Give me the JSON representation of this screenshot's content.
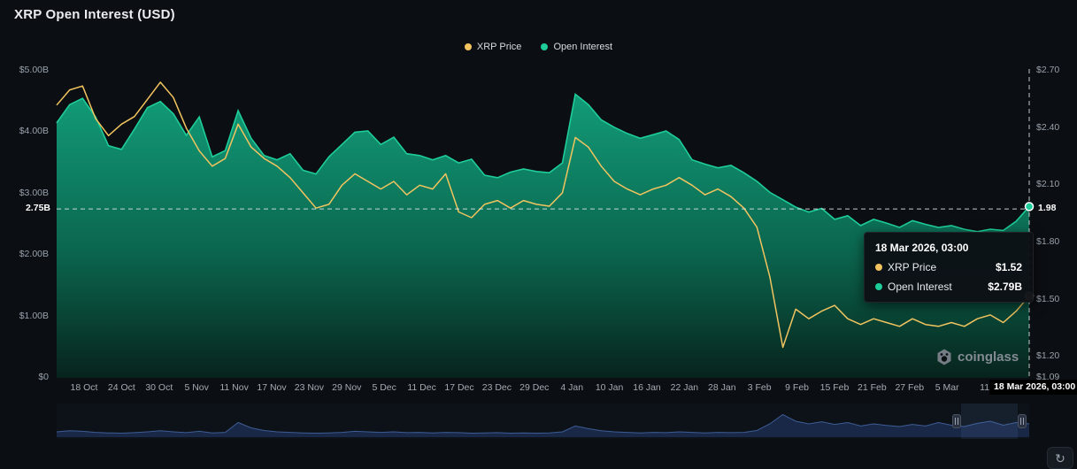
{
  "title": "XRP Open Interest (USD)",
  "legend": [
    {
      "label": "XRP Price",
      "color": "#F2C45F"
    },
    {
      "label": "Open Interest",
      "color": "#1ECD9A"
    }
  ],
  "colors": {
    "background": "#0B0E12",
    "price": "#F2C45F",
    "oi": "#1ECD9A",
    "oi_gradient_top": "#12A37D",
    "oi_gradient_bottom": "#07231C",
    "navigator_fill": "#1B2B4C",
    "navigator_line": "#3D5C94",
    "crosshair": "#E7EAEE"
  },
  "chart_data": {
    "type": "area",
    "title": "XRP Open Interest (USD)",
    "x_start": "18 Oct",
    "x_end": "18 Mar 2026",
    "x_ticks": [
      "18 Oct",
      "24 Oct",
      "30 Oct",
      "5 Nov",
      "11 Nov",
      "17 Nov",
      "23 Nov",
      "29 Nov",
      "5 Dec",
      "11 Dec",
      "17 Dec",
      "23 Dec",
      "29 Dec",
      "4 Jan",
      "10 Jan",
      "16 Jan",
      "22 Jan",
      "28 Jan",
      "3 Feb",
      "9 Feb",
      "15 Feb",
      "21 Feb",
      "27 Feb",
      "5 Mar",
      "11"
    ],
    "left_axis": {
      "title": "Open Interest (USD)",
      "min": 0,
      "max": 5,
      "ticks": [
        {
          "label": "$0",
          "value": 0
        },
        {
          "label": "$1.00B",
          "value": 1
        },
        {
          "label": "$2.00B",
          "value": 2
        },
        {
          "label": "$3.00B",
          "value": 3
        },
        {
          "label": "$4.00B",
          "value": 4
        },
        {
          "label": "$5.00B",
          "value": 5
        }
      ]
    },
    "right_axis": {
      "title": "XRP Price (USD)",
      "min": 1.09,
      "max": 2.7,
      "ticks": [
        {
          "label": "$1.09",
          "value": 1.09
        },
        {
          "label": "$1.20",
          "value": 1.2
        },
        {
          "label": "$1.50",
          "value": 1.5
        },
        {
          "label": "$1.80",
          "value": 1.8
        },
        {
          "label": "$2.10",
          "value": 2.1
        },
        {
          "label": "$2.40",
          "value": 2.4
        },
        {
          "label": "$2.70",
          "value": 2.7
        }
      ]
    },
    "series": [
      {
        "name": "XRP Price",
        "type": "line",
        "axis": "right",
        "color": "#F2C45F",
        "values": [
          2.52,
          2.6,
          2.62,
          2.45,
          2.36,
          2.42,
          2.46,
          2.55,
          2.64,
          2.56,
          2.4,
          2.28,
          2.2,
          2.24,
          2.42,
          2.3,
          2.24,
          2.2,
          2.14,
          2.06,
          1.98,
          2.0,
          2.1,
          2.16,
          2.12,
          2.08,
          2.12,
          2.05,
          2.1,
          2.08,
          2.16,
          1.96,
          1.93,
          2.0,
          2.02,
          1.98,
          2.02,
          2.0,
          1.99,
          2.06,
          2.35,
          2.3,
          2.2,
          2.12,
          2.08,
          2.05,
          2.08,
          2.1,
          2.14,
          2.1,
          2.05,
          2.08,
          2.04,
          1.98,
          1.88,
          1.62,
          1.25,
          1.45,
          1.4,
          1.44,
          1.47,
          1.4,
          1.37,
          1.4,
          1.38,
          1.36,
          1.4,
          1.37,
          1.36,
          1.38,
          1.36,
          1.4,
          1.42,
          1.38,
          1.44,
          1.52
        ]
      },
      {
        "name": "Open Interest",
        "type": "area",
        "axis": "left",
        "color": "#1ECD9A",
        "values": [
          4.15,
          4.45,
          4.55,
          4.25,
          3.78,
          3.72,
          4.05,
          4.4,
          4.5,
          4.3,
          3.95,
          4.25,
          3.6,
          3.7,
          4.35,
          3.9,
          3.62,
          3.55,
          3.65,
          3.38,
          3.32,
          3.6,
          3.8,
          4.0,
          4.02,
          3.8,
          3.92,
          3.65,
          3.62,
          3.55,
          3.62,
          3.5,
          3.56,
          3.3,
          3.26,
          3.35,
          3.4,
          3.36,
          3.34,
          3.5,
          4.62,
          4.45,
          4.2,
          4.08,
          3.98,
          3.9,
          3.96,
          4.02,
          3.88,
          3.55,
          3.48,
          3.42,
          3.46,
          3.34,
          3.2,
          3.02,
          2.9,
          2.78,
          2.7,
          2.76,
          2.58,
          2.64,
          2.48,
          2.58,
          2.52,
          2.45,
          2.56,
          2.5,
          2.45,
          2.48,
          2.42,
          2.38,
          2.42,
          2.4,
          2.55,
          2.79
        ]
      }
    ],
    "current": {
      "price": 1.52,
      "open_interest_b": 2.79,
      "timestamp": "18 Mar 2026, 03:00"
    }
  },
  "crosshair": {
    "left_label": "2.75B",
    "left_value": 2.75,
    "right_label": "1.98",
    "right_value": 1.98,
    "x_label": "18 Mar 2026, 03:00"
  },
  "tooltip": {
    "title": "18 Mar 2026, 03:00",
    "rows": [
      {
        "label": "XRP Price",
        "value": "$1.52",
        "color": "#F2C45F"
      },
      {
        "label": "Open Interest",
        "value": "$2.79B",
        "color": "#1ECD9A"
      }
    ]
  },
  "navigator": {
    "values": [
      0.2,
      0.24,
      0.22,
      0.18,
      0.16,
      0.15,
      0.17,
      0.2,
      0.24,
      0.2,
      0.17,
      0.22,
      0.16,
      0.18,
      0.55,
      0.35,
      0.25,
      0.2,
      0.18,
      0.16,
      0.15,
      0.16,
      0.18,
      0.22,
      0.2,
      0.18,
      0.2,
      0.17,
      0.18,
      0.16,
      0.18,
      0.17,
      0.15,
      0.16,
      0.17,
      0.15,
      0.16,
      0.15,
      0.16,
      0.2,
      0.42,
      0.32,
      0.24,
      0.2,
      0.18,
      0.16,
      0.18,
      0.17,
      0.2,
      0.18,
      0.16,
      0.18,
      0.17,
      0.18,
      0.25,
      0.5,
      0.85,
      0.6,
      0.5,
      0.58,
      0.48,
      0.55,
      0.42,
      0.5,
      0.44,
      0.4,
      0.48,
      0.42,
      0.55,
      0.45,
      0.4,
      0.52,
      0.6,
      0.45,
      0.55,
      0.5
    ]
  },
  "watermark": "coinglass",
  "refresh_icon": "refresh"
}
